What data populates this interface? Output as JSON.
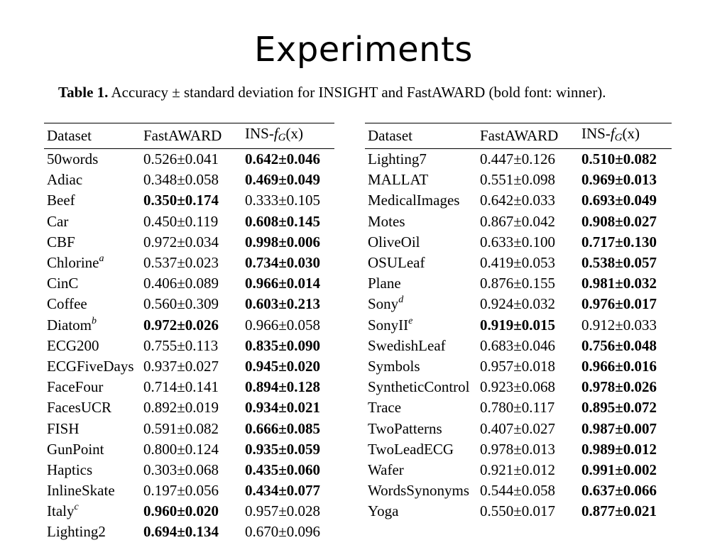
{
  "title": "Experiments",
  "caption": {
    "label": "Table 1.",
    "text": " Accuracy ± standard deviation for INSIGHT and FastAWARD (bold font: winner)."
  },
  "columns": {
    "dataset": "Dataset",
    "fastaward": "FastAWARD",
    "ins_prefix": "INS-",
    "ins_f": "f",
    "ins_sub": "G",
    "ins_suffix": "(x)"
  },
  "left_rows": [
    {
      "dataset": "50words",
      "sup": "",
      "fastaward": "0.526±0.041",
      "ins": "0.642±0.046",
      "winner": "ins"
    },
    {
      "dataset": "Adiac",
      "sup": "",
      "fastaward": "0.348±0.058",
      "ins": "0.469±0.049",
      "winner": "ins"
    },
    {
      "dataset": "Beef",
      "sup": "",
      "fastaward": "0.350±0.174",
      "ins": "0.333±0.105",
      "winner": "fastaward"
    },
    {
      "dataset": "Car",
      "sup": "",
      "fastaward": "0.450±0.119",
      "ins": "0.608±0.145",
      "winner": "ins"
    },
    {
      "dataset": "CBF",
      "sup": "",
      "fastaward": "0.972±0.034",
      "ins": "0.998±0.006",
      "winner": "ins"
    },
    {
      "dataset": "Chlorine",
      "sup": "a",
      "fastaward": "0.537±0.023",
      "ins": "0.734±0.030",
      "winner": "ins"
    },
    {
      "dataset": "CinC",
      "sup": "",
      "fastaward": "0.406±0.089",
      "ins": "0.966±0.014",
      "winner": "ins"
    },
    {
      "dataset": "Coffee",
      "sup": "",
      "fastaward": "0.560±0.309",
      "ins": "0.603±0.213",
      "winner": "ins"
    },
    {
      "dataset": "Diatom",
      "sup": "b",
      "fastaward": "0.972±0.026",
      "ins": "0.966±0.058",
      "winner": "fastaward"
    },
    {
      "dataset": "ECG200",
      "sup": "",
      "fastaward": "0.755±0.113",
      "ins": "0.835±0.090",
      "winner": "ins"
    },
    {
      "dataset": "ECGFiveDays",
      "sup": "",
      "fastaward": "0.937±0.027",
      "ins": "0.945±0.020",
      "winner": "ins"
    },
    {
      "dataset": "FaceFour",
      "sup": "",
      "fastaward": "0.714±0.141",
      "ins": "0.894±0.128",
      "winner": "ins"
    },
    {
      "dataset": "FacesUCR",
      "sup": "",
      "fastaward": "0.892±0.019",
      "ins": "0.934±0.021",
      "winner": "ins"
    },
    {
      "dataset": "FISH",
      "sup": "",
      "fastaward": "0.591±0.082",
      "ins": "0.666±0.085",
      "winner": "ins"
    },
    {
      "dataset": "GunPoint",
      "sup": "",
      "fastaward": "0.800±0.124",
      "ins": "0.935±0.059",
      "winner": "ins"
    },
    {
      "dataset": "Haptics",
      "sup": "",
      "fastaward": "0.303±0.068",
      "ins": "0.435±0.060",
      "winner": "ins"
    },
    {
      "dataset": "InlineSkate",
      "sup": "",
      "fastaward": "0.197±0.056",
      "ins": "0.434±0.077",
      "winner": "ins"
    },
    {
      "dataset": "Italy",
      "sup": "c",
      "fastaward": "0.960±0.020",
      "ins": "0.957±0.028",
      "winner": "fastaward"
    },
    {
      "dataset": "Lighting2",
      "sup": "",
      "fastaward": "0.694±0.134",
      "ins": "0.670±0.096",
      "winner": "fastaward"
    }
  ],
  "right_rows": [
    {
      "dataset": "Lighting7",
      "sup": "",
      "fastaward": "0.447±0.126",
      "ins": "0.510±0.082",
      "winner": "ins"
    },
    {
      "dataset": "MALLAT",
      "sup": "",
      "fastaward": "0.551±0.098",
      "ins": "0.969±0.013",
      "winner": "ins"
    },
    {
      "dataset": "MedicalImages",
      "sup": "",
      "fastaward": "0.642±0.033",
      "ins": "0.693±0.049",
      "winner": "ins"
    },
    {
      "dataset": "Motes",
      "sup": "",
      "fastaward": "0.867±0.042",
      "ins": "0.908±0.027",
      "winner": "ins"
    },
    {
      "dataset": "OliveOil",
      "sup": "",
      "fastaward": "0.633±0.100",
      "ins": "0.717±0.130",
      "winner": "ins"
    },
    {
      "dataset": "OSULeaf",
      "sup": "",
      "fastaward": "0.419±0.053",
      "ins": "0.538±0.057",
      "winner": "ins"
    },
    {
      "dataset": "Plane",
      "sup": "",
      "fastaward": "0.876±0.155",
      "ins": "0.981±0.032",
      "winner": "ins"
    },
    {
      "dataset": "Sony",
      "sup": "d",
      "fastaward": "0.924±0.032",
      "ins": "0.976±0.017",
      "winner": "ins"
    },
    {
      "dataset": "SonyII",
      "sup": "e",
      "fastaward": "0.919±0.015",
      "ins": "0.912±0.033",
      "winner": "fastaward"
    },
    {
      "dataset": "SwedishLeaf",
      "sup": "",
      "fastaward": "0.683±0.046",
      "ins": "0.756±0.048",
      "winner": "ins"
    },
    {
      "dataset": "Symbols",
      "sup": "",
      "fastaward": "0.957±0.018",
      "ins": "0.966±0.016",
      "winner": "ins"
    },
    {
      "dataset": "SyntheticControl",
      "sup": "",
      "fastaward": "0.923±0.068",
      "ins": "0.978±0.026",
      "winner": "ins"
    },
    {
      "dataset": "Trace",
      "sup": "",
      "fastaward": "0.780±0.117",
      "ins": "0.895±0.072",
      "winner": "ins"
    },
    {
      "dataset": "TwoPatterns",
      "sup": "",
      "fastaward": "0.407±0.027",
      "ins": "0.987±0.007",
      "winner": "ins"
    },
    {
      "dataset": "TwoLeadECG",
      "sup": "",
      "fastaward": "0.978±0.013",
      "ins": "0.989±0.012",
      "winner": "ins"
    },
    {
      "dataset": "Wafer",
      "sup": "",
      "fastaward": "0.921±0.012",
      "ins": "0.991±0.002",
      "winner": "ins"
    },
    {
      "dataset": "WordsSynonyms",
      "sup": "",
      "fastaward": "0.544±0.058",
      "ins": "0.637±0.066",
      "winner": "ins"
    },
    {
      "dataset": "Yoga",
      "sup": "",
      "fastaward": "0.550±0.017",
      "ins": "0.877±0.021",
      "winner": "ins"
    }
  ]
}
